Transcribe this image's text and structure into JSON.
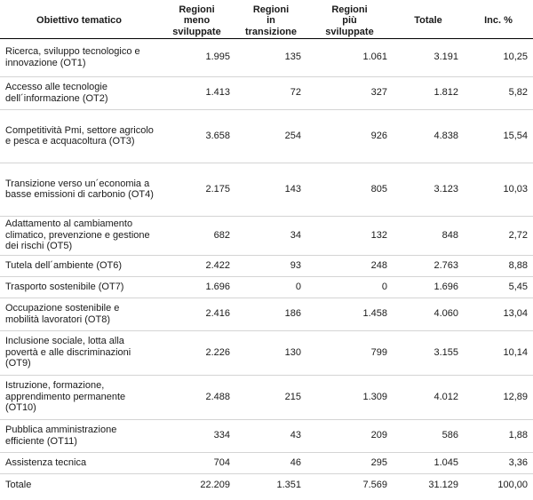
{
  "table": {
    "headers": [
      "Obiettivo tematico",
      "Regioni meno sviluppate",
      "Regioni in transizione",
      "Regioni più sviluppate",
      "Totale",
      "Inc. %"
    ],
    "header_lines": [
      [
        "Obiettivo tematico"
      ],
      [
        "Regioni",
        "meno",
        "sviluppate"
      ],
      [
        "Regioni",
        "in",
        "transizione"
      ],
      [
        "Regioni",
        "più",
        "sviluppate"
      ],
      [
        "Totale"
      ],
      [
        "Inc. %"
      ]
    ],
    "rows": [
      {
        "label": [
          "Ricerca, sviluppo tecnologico e",
          "innovazione (OT1)"
        ],
        "values": [
          "1.995",
          "135",
          "1.061",
          "3.191",
          "10,25"
        ]
      },
      {
        "label": [
          "Accesso alle tecnologie",
          "dell´informazione (OT2)"
        ],
        "values": [
          "1.413",
          "72",
          "327",
          "1.812",
          "5,82"
        ]
      },
      {
        "label": [
          "Competitività Pmi, settore agricolo",
          "e pesca e acquacoltura (OT3)"
        ],
        "values": [
          "3.658",
          "254",
          "926",
          "4.838",
          "15,54"
        ]
      },
      {
        "label": [
          "Transizione verso un´economia a",
          "basse emissioni di carbonio (OT4)"
        ],
        "values": [
          "2.175",
          "143",
          "805",
          "3.123",
          "10,03"
        ]
      },
      {
        "label": [
          "Adattamento al cambiamento",
          "climatico, prevenzione e gestione",
          "dei rischi (OT5)"
        ],
        "values": [
          "682",
          "34",
          "132",
          "848",
          "2,72"
        ]
      },
      {
        "label": [
          "Tutela dell´ambiente (OT6)"
        ],
        "values": [
          "2.422",
          "93",
          "248",
          "2.763",
          "8,88"
        ]
      },
      {
        "label": [
          "Trasporto sostenibile (OT7)"
        ],
        "values": [
          "1.696",
          "0",
          "0",
          "1.696",
          "5,45"
        ]
      },
      {
        "label": [
          "Occupazione sostenibile e",
          "mobilità lavoratori (OT8)"
        ],
        "values": [
          "2.416",
          "186",
          "1.458",
          "4.060",
          "13,04"
        ]
      },
      {
        "label": [
          "Inclusione sociale, lotta alla",
          "povertà e alle discriminazioni",
          "(OT9)"
        ],
        "values": [
          "2.226",
          "130",
          "799",
          "3.155",
          "10,14"
        ]
      },
      {
        "label": [
          "Istruzione, formazione,",
          "apprendimento permanente",
          "(OT10)"
        ],
        "values": [
          "2.488",
          "215",
          "1.309",
          "4.012",
          "12,89"
        ]
      },
      {
        "label": [
          "Pubblica amministrazione",
          "efficiente (OT11)"
        ],
        "values": [
          "334",
          "43",
          "209",
          "586",
          "1,88"
        ]
      },
      {
        "label": [
          "Assistenza tecnica"
        ],
        "values": [
          "704",
          "46",
          "295",
          "1.045",
          "3,36"
        ]
      },
      {
        "label": [
          "Totale"
        ],
        "values": [
          "22.209",
          "1.351",
          "7.569",
          "31.129",
          "100,00"
        ]
      }
    ]
  }
}
